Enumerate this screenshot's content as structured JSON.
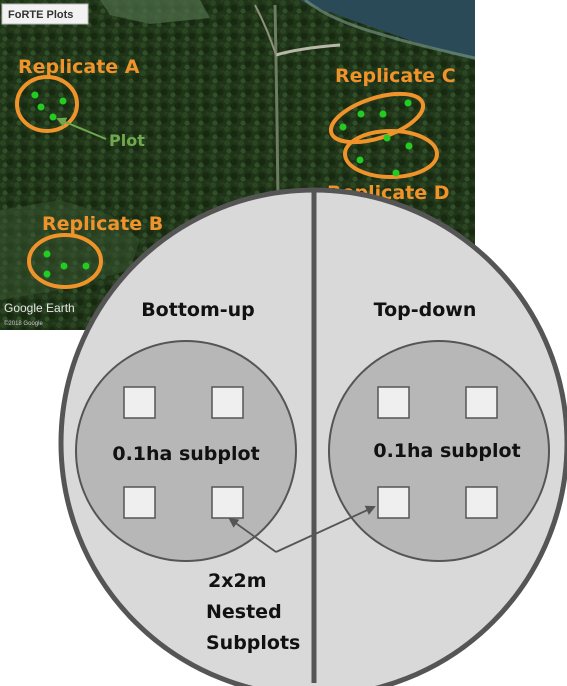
{
  "map": {
    "title_tag": "FoRTE Plots",
    "attribution": "Google Earth",
    "copyright": "©2018 Google",
    "plot_label": "Plot",
    "replicates": [
      {
        "id": "A",
        "label": "Replicate A"
      },
      {
        "id": "B",
        "label": "Replicate B"
      },
      {
        "id": "C",
        "label": "Replicate C"
      },
      {
        "id": "D",
        "label": "Replicate D"
      }
    ],
    "colors": {
      "replicate": "#f0932b",
      "plot_dot": "#22cc22",
      "plot_label": "#6fa84f"
    }
  },
  "design": {
    "left_half": {
      "label": "Bottom-up",
      "subplot_label": "0.1ha subplot"
    },
    "right_half": {
      "label": "Top-down",
      "subplot_label": "0.1ha subplot"
    },
    "nested_label": [
      "2x2m",
      "Nested",
      "Subplots"
    ],
    "colors": {
      "outer_fill": "#d9d9d9",
      "outer_stroke": "#555555",
      "subplot_fill": "#b7b7b7",
      "square_fill": "#efefef"
    }
  }
}
